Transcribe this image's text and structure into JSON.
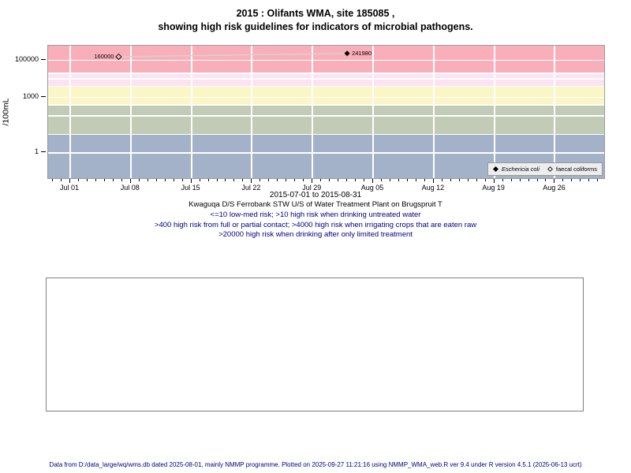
{
  "title": {
    "line1": "2015 : Olifants WMA, site 185085 ,",
    "line2": "showing high risk guidelines for indicators of microbial pathogens."
  },
  "caption": {
    "lines": [
      "Kwaguqa D/S Ferrobank STW U/S of Water Treatment Plant on Brugspruit T",
      "<=10 low-med risk; >10 high risk when drinking untreated water",
      ">400 high risk from full or partial contact; >4000 high risk when irrigating crops that are eaten raw",
      ">20000 high risk when drinking after only limited treatment"
    ]
  },
  "footer": {
    "text": "Data from D:/data_large/wq/wms.db dated 2025-08-01, mainly NMMP programme. Plotted on 2025-09-27 11:21:16 using NMMP_WMA_web.R ver 9.4 under R version 4.5.1 (2025-06-13 ucrt)"
  },
  "colors": {
    "caption_guideline_text": "#000080",
    "footer_text": "#000080",
    "grid": "#FFFFFF",
    "frame": "#9A9A9A",
    "connector": "#D3D3D3"
  },
  "chart_data": {
    "type": "scatter",
    "title": "2015 : Olifants WMA, site 185085 , showing high risk guidelines for indicators of microbial pathogens.",
    "ylabel": "/100mL",
    "xlabel": "2015-07-01 to 2015-08-31",
    "yscale": "log",
    "ylim": [
      0.042,
      631000
    ],
    "xlim_days": [
      -2.55,
      61.7
    ],
    "x_ticks": [
      {
        "label": "Jul 01",
        "day": 0
      },
      {
        "label": "Jul 08",
        "day": 7
      },
      {
        "label": "Jul 15",
        "day": 14
      },
      {
        "label": "Jul 22",
        "day": 21
      },
      {
        "label": "Jul 29",
        "day": 28
      },
      {
        "label": "Aug 05",
        "day": 35
      },
      {
        "label": "Aug 12",
        "day": 42
      },
      {
        "label": "Aug 19",
        "day": 49
      },
      {
        "label": "Aug 26",
        "day": 56
      }
    ],
    "x_minor_tick_every_days": 1,
    "y_ticks": [
      {
        "label": "100000",
        "value": 100000
      },
      {
        "label": "1000",
        "value": 1000
      },
      {
        "label": "1",
        "value": 1
      }
    ],
    "gridlines_y_values": [
      100000,
      20000,
      10000,
      4000,
      1000,
      400,
      100,
      10,
      1
    ],
    "risk_bands": [
      {
        "name": "high risk when drinking after only limited treatment",
        "from": 20000,
        "to": 631000,
        "color": "#F9AFBA"
      },
      {
        "name": "high risk when irrigating crops that are eaten raw",
        "from": 4000,
        "to": 20000,
        "color": "#FBE3F2"
      },
      {
        "name": "high risk from full or partial contact",
        "from": 400,
        "to": 4000,
        "color": "#FAF6C6"
      },
      {
        "name": "high risk when drinking untreated water",
        "from": 10,
        "to": 400,
        "color": "#C2CBB6"
      },
      {
        "name": "low-med risk",
        "from": 0.042,
        "to": 10,
        "color": "#A3B1C9"
      }
    ],
    "series": [
      {
        "name": "Eschericia coli",
        "marker": "filled-diamond",
        "color": "#000000",
        "points": [
          {
            "day": 32,
            "value": 241980,
            "label": "241980",
            "label_side": "right"
          }
        ]
      },
      {
        "name": "faecal coliforms",
        "marker": "open-diamond",
        "color": "#000000",
        "points": [
          {
            "day": 5.6,
            "value": 160000,
            "label": "160000",
            "label_side": "left"
          }
        ]
      }
    ],
    "connector_line": {
      "color": "#D3D3D3",
      "from": {
        "day": 5.6,
        "value": 160000
      },
      "to": {
        "day": 32,
        "value": 241980
      }
    },
    "legend": {
      "position": "bottom-right",
      "entries": [
        {
          "label": "Eschericia coli",
          "marker": "filled-diamond",
          "italic": true
        },
        {
          "label": "faecal coliforms",
          "marker": "open-diamond",
          "italic": false
        }
      ]
    }
  }
}
